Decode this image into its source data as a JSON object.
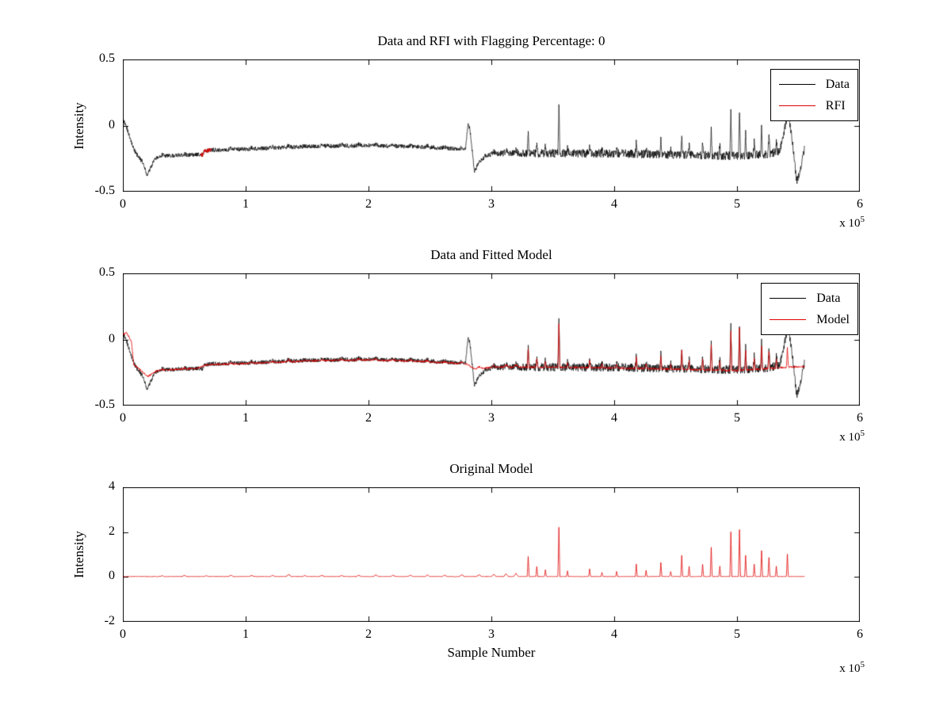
{
  "figure": {
    "background": "#ffffff",
    "axis_color": "#000000",
    "exp_prefix": "x 10",
    "exp_power": "5"
  },
  "signals": {
    "spike_width_narrow": 0.008,
    "spike_width_wide": 0.02,
    "model_spikes": [
      [
        0.32,
        0.04
      ],
      [
        0.5,
        0.05
      ],
      [
        0.68,
        0.04
      ],
      [
        0.88,
        0.06
      ],
      [
        1.05,
        0.05
      ],
      [
        1.22,
        0.05
      ],
      [
        1.35,
        0.1
      ],
      [
        1.48,
        0.05
      ],
      [
        1.62,
        0.06
      ],
      [
        1.78,
        0.05
      ],
      [
        1.92,
        0.06
      ],
      [
        2.06,
        0.07
      ],
      [
        2.2,
        0.06
      ],
      [
        2.34,
        0.06
      ],
      [
        2.48,
        0.07
      ],
      [
        2.62,
        0.06
      ],
      [
        2.76,
        0.08
      ],
      [
        2.9,
        0.08
      ],
      [
        3.02,
        0.1
      ],
      [
        3.12,
        0.12
      ],
      [
        3.2,
        0.14
      ],
      [
        3.3,
        0.9
      ],
      [
        3.37,
        0.45
      ],
      [
        3.44,
        0.3
      ],
      [
        3.55,
        2.2
      ],
      [
        3.62,
        0.25
      ],
      [
        3.8,
        0.35
      ],
      [
        3.9,
        0.18
      ],
      [
        4.02,
        0.22
      ],
      [
        4.18,
        0.55
      ],
      [
        4.26,
        0.28
      ],
      [
        4.38,
        0.62
      ],
      [
        4.46,
        0.22
      ],
      [
        4.55,
        0.95
      ],
      [
        4.61,
        0.45
      ],
      [
        4.72,
        0.55
      ],
      [
        4.79,
        1.3
      ],
      [
        4.86,
        0.45
      ],
      [
        4.95,
        2.0
      ],
      [
        5.02,
        2.1
      ],
      [
        5.07,
        0.95
      ],
      [
        5.14,
        0.55
      ],
      [
        5.2,
        1.15
      ],
      [
        5.26,
        0.85
      ],
      [
        5.32,
        0.45
      ],
      [
        5.41,
        1.0
      ]
    ],
    "data_baseline": [
      [
        0.0,
        0.05
      ],
      [
        0.015,
        0.02
      ],
      [
        0.04,
        -0.04
      ],
      [
        0.07,
        -0.13
      ],
      [
        0.1,
        -0.2
      ],
      [
        0.13,
        -0.24
      ],
      [
        0.165,
        -0.28
      ],
      [
        0.2,
        -0.38
      ],
      [
        0.23,
        -0.31
      ],
      [
        0.26,
        -0.25
      ],
      [
        0.3,
        -0.23
      ],
      [
        0.45,
        -0.225
      ],
      [
        0.6,
        -0.22
      ],
      [
        0.655,
        -0.22
      ],
      [
        0.66,
        -0.2
      ],
      [
        0.7,
        -0.19
      ],
      [
        0.72,
        -0.185
      ],
      [
        0.9,
        -0.18
      ],
      [
        1.2,
        -0.17
      ],
      [
        1.6,
        -0.155
      ],
      [
        2.0,
        -0.15
      ],
      [
        2.4,
        -0.16
      ],
      [
        2.7,
        -0.175
      ],
      [
        2.79,
        -0.18
      ],
      [
        2.812,
        0.03
      ],
      [
        2.83,
        -0.06
      ],
      [
        2.862,
        -0.35
      ],
      [
        2.9,
        -0.28
      ],
      [
        2.95,
        -0.23
      ],
      [
        3.05,
        -0.21
      ],
      [
        3.5,
        -0.21
      ],
      [
        4.0,
        -0.21
      ],
      [
        4.5,
        -0.22
      ],
      [
        5.0,
        -0.23
      ],
      [
        5.25,
        -0.215
      ],
      [
        5.35,
        -0.19
      ],
      [
        5.415,
        0.1
      ],
      [
        5.45,
        -0.12
      ],
      [
        5.485,
        -0.42
      ],
      [
        5.515,
        -0.33
      ],
      [
        5.55,
        -0.17
      ]
    ],
    "model_baseline": [
      [
        0.0,
        0.04
      ],
      [
        0.03,
        0.05
      ],
      [
        0.05,
        0.02
      ],
      [
        0.07,
        -0.02
      ],
      [
        0.09,
        -0.19
      ],
      [
        0.13,
        -0.22
      ],
      [
        0.165,
        -0.25
      ],
      [
        0.2,
        -0.28
      ],
      [
        0.24,
        -0.26
      ],
      [
        0.28,
        -0.235
      ],
      [
        0.45,
        -0.225
      ],
      [
        0.6,
        -0.22
      ],
      [
        0.66,
        -0.2
      ],
      [
        0.72,
        -0.19
      ],
      [
        0.9,
        -0.185
      ],
      [
        1.2,
        -0.175
      ],
      [
        1.6,
        -0.16
      ],
      [
        2.0,
        -0.155
      ],
      [
        2.4,
        -0.165
      ],
      [
        2.7,
        -0.18
      ],
      [
        2.8,
        -0.185
      ],
      [
        2.86,
        -0.22
      ],
      [
        2.95,
        -0.215
      ],
      [
        3.05,
        -0.21
      ],
      [
        3.5,
        -0.21
      ],
      [
        4.0,
        -0.215
      ],
      [
        4.5,
        -0.225
      ],
      [
        5.0,
        -0.235
      ],
      [
        5.25,
        -0.22
      ],
      [
        5.4,
        -0.21
      ],
      [
        5.55,
        -0.205
      ]
    ],
    "flat_baseline": [
      [
        0.0,
        0.02
      ],
      [
        5.55,
        0.02
      ]
    ]
  },
  "chart_data": [
    {
      "type": "line",
      "title": "Data and RFI with Flagging Percentage: 0",
      "ylabel": "Intensity",
      "xlabel": "",
      "xlim": [
        0,
        6
      ],
      "ylim": [
        -0.5,
        0.5
      ],
      "x_unit_scale": 100000,
      "xticks": [
        0,
        1,
        2,
        3,
        4,
        5,
        6
      ],
      "xtick_labels": [
        "0",
        "1",
        "2",
        "3",
        "4",
        "5",
        "6"
      ],
      "yticks": [
        -0.5,
        0,
        0.5
      ],
      "ytick_labels": [
        "-0.5",
        "0",
        "0.5"
      ],
      "grid": false,
      "legend_position": "top-right",
      "legend": [
        {
          "label": "Data",
          "color": "#000000"
        },
        {
          "label": "RFI",
          "color": "#e00000"
        }
      ],
      "series": [
        {
          "name": "Data",
          "color": "#000000",
          "width": 0.7,
          "baseline": "data_baseline",
          "noise": 0.016,
          "noise_hi": 0.032,
          "spikes": "model_spikes",
          "spike_scale": 0.17,
          "seed": 1
        },
        {
          "name": "RFI",
          "color": "#e00000",
          "width": 0.9,
          "overlay": true,
          "xrange": [
            0.63,
            0.72
          ]
        }
      ]
    },
    {
      "type": "line",
      "title": "Data and Fitted Model",
      "ylabel": "",
      "xlabel": "",
      "xlim": [
        0,
        6
      ],
      "ylim": [
        -0.5,
        0.5
      ],
      "x_unit_scale": 100000,
      "xticks": [
        0,
        1,
        2,
        3,
        4,
        5,
        6
      ],
      "xtick_labels": [
        "0",
        "1",
        "2",
        "3",
        "4",
        "5",
        "6"
      ],
      "yticks": [
        -0.5,
        0,
        0.5
      ],
      "ytick_labels": [
        "-0.5",
        "0",
        "0.5"
      ],
      "grid": false,
      "legend_position": "top-right",
      "legend": [
        {
          "label": "Data",
          "color": "#000000"
        },
        {
          "label": "Model",
          "color": "#e00000"
        }
      ],
      "series": [
        {
          "name": "Data",
          "color": "#000000",
          "width": 0.7,
          "baseline": "data_baseline",
          "noise": 0.016,
          "noise_hi": 0.032,
          "spikes": "model_spikes",
          "spike_scale": 0.17,
          "seed": 1
        },
        {
          "name": "Model",
          "color": "#e00000",
          "width": 0.8,
          "baseline": "model_baseline",
          "noise": 0.007,
          "spikes": "model_spikes",
          "spike_scale": 0.15,
          "seed": 2
        }
      ]
    },
    {
      "type": "line",
      "title": "Original Model",
      "ylabel": "Intensity",
      "xlabel": "Sample Number",
      "xlim": [
        0,
        6
      ],
      "ylim": [
        -2,
        4
      ],
      "x_unit_scale": 100000,
      "xticks": [
        0,
        1,
        2,
        3,
        4,
        5,
        6
      ],
      "xtick_labels": [
        "0",
        "1",
        "2",
        "3",
        "4",
        "5",
        "6"
      ],
      "yticks": [
        -2,
        0,
        2,
        4
      ],
      "ytick_labels": [
        "-2",
        "0",
        "2",
        "4"
      ],
      "grid": false,
      "legend": null,
      "series": [
        {
          "name": "Model",
          "color": "#e00000",
          "width": 0.8,
          "baseline": "flat_baseline",
          "noise": 0.012,
          "spikes": "model_spikes",
          "spike_scale": 1.0,
          "seed": 3
        }
      ]
    }
  ]
}
